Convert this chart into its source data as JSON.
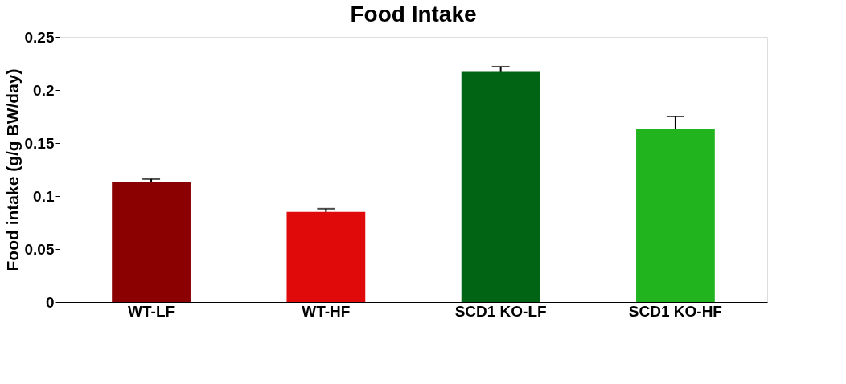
{
  "chart_data": {
    "type": "bar",
    "title": "Food Intake",
    "ylabel": "Food intake (g/g BW/day)",
    "categories": [
      "WT-LF",
      "WT-HF",
      "SCD1 KO-LF",
      "SCD1 KO-HF"
    ],
    "values": [
      0.113,
      0.085,
      0.217,
      0.163
    ],
    "errors": [
      0.003,
      0.003,
      0.005,
      0.012
    ],
    "colors": [
      "#8b0000",
      "#e00a0a",
      "#006414",
      "#22b41e"
    ],
    "ylim": [
      0,
      0.25
    ],
    "yticks": [
      0,
      0.05,
      0.1,
      0.15,
      0.2,
      0.25
    ],
    "grid": false,
    "legend": false
  }
}
